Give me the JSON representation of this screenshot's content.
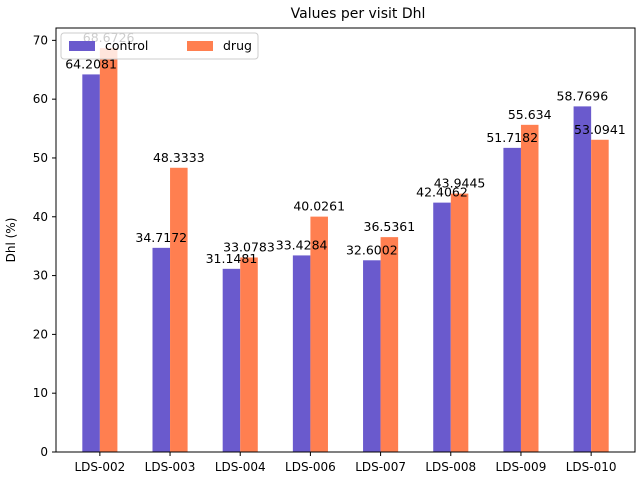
{
  "chart_data": {
    "type": "bar",
    "title": "Values per visit Dhl",
    "xlabel": "",
    "ylabel": "Dhl (%)",
    "categories": [
      "LDS-002",
      "LDS-003",
      "LDS-004",
      "LDS-006",
      "LDS-007",
      "LDS-008",
      "LDS-009",
      "LDS-010"
    ],
    "series": [
      {
        "name": "control",
        "color": "#6a5acd",
        "values": [
          64.2081,
          34.7172,
          31.1481,
          33.4284,
          32.6002,
          42.4062,
          51.7182,
          58.7696
        ],
        "labels": [
          "64.2081",
          "34.7172",
          "31.1481",
          "33.4284",
          "32.6002",
          "42.4062",
          "51.7182",
          "58.7696"
        ]
      },
      {
        "name": "drug",
        "color": "#ff7f50",
        "values": [
          68.6726,
          48.3333,
          33.0783,
          40.0261,
          36.5361,
          43.9445,
          55.634,
          53.0941
        ],
        "labels": [
          "68.6726",
          "48.3333",
          "33.0783",
          "40.0261",
          "36.5361",
          "43.9445",
          "55.634",
          "53.0941"
        ]
      }
    ],
    "ylim": [
      0,
      72.1
    ],
    "yticks": [
      "0",
      "10",
      "20",
      "30",
      "40",
      "50",
      "60",
      "70"
    ],
    "grid": false,
    "legend": "top-left",
    "legend_columns": 2
  }
}
